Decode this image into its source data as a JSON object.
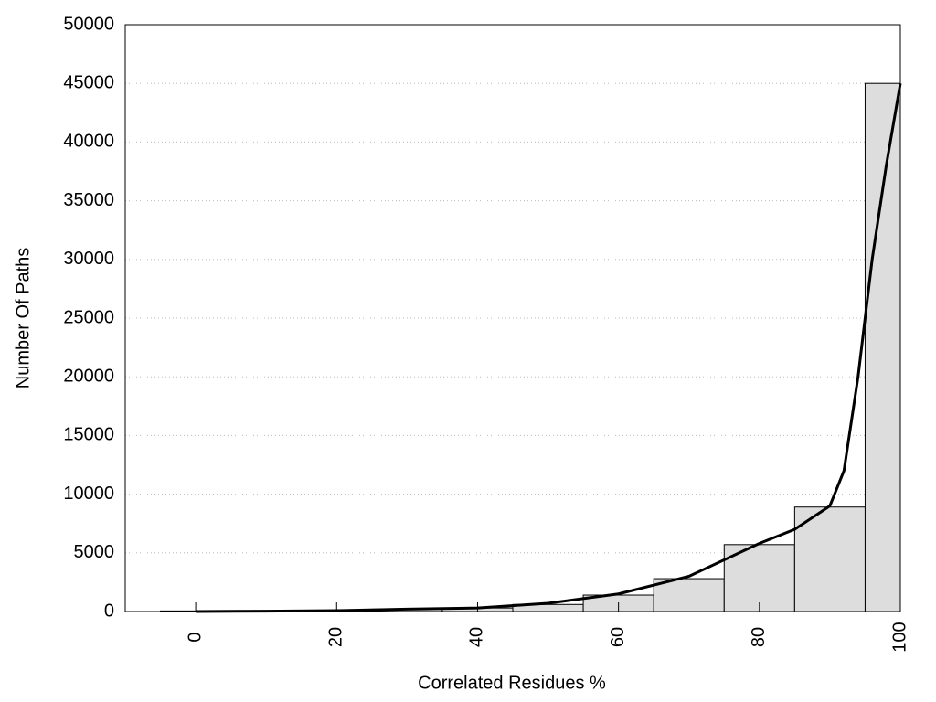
{
  "chart_data": {
    "type": "histogram",
    "xlabel": "Correlated Residues %",
    "ylabel": "Number Of Paths",
    "bins": [
      -5,
      5,
      15,
      25,
      35,
      45,
      55,
      65,
      75,
      85,
      95,
      100
    ],
    "counts": [
      50,
      50,
      100,
      200,
      300,
      600,
      1400,
      2800,
      5700,
      8900,
      45000
    ],
    "bar_color": "#dddddd",
    "curve": {
      "color": "#000000",
      "x": [
        0,
        10,
        20,
        30,
        40,
        50,
        60,
        70,
        80,
        85,
        90,
        92,
        94,
        96,
        98,
        100
      ],
      "y": [
        0,
        30,
        80,
        200,
        300,
        700,
        1500,
        3000,
        5800,
        7000,
        9000,
        12000,
        20000,
        30000,
        38000,
        45000
      ]
    },
    "xlim": [
      -10,
      100
    ],
    "ylim": [
      0,
      50000
    ],
    "xticks": [
      0,
      20,
      40,
      60,
      80,
      100
    ],
    "yticks": [
      0,
      5000,
      10000,
      15000,
      20000,
      25000,
      30000,
      35000,
      40000,
      45000,
      50000
    ],
    "grid": true
  }
}
